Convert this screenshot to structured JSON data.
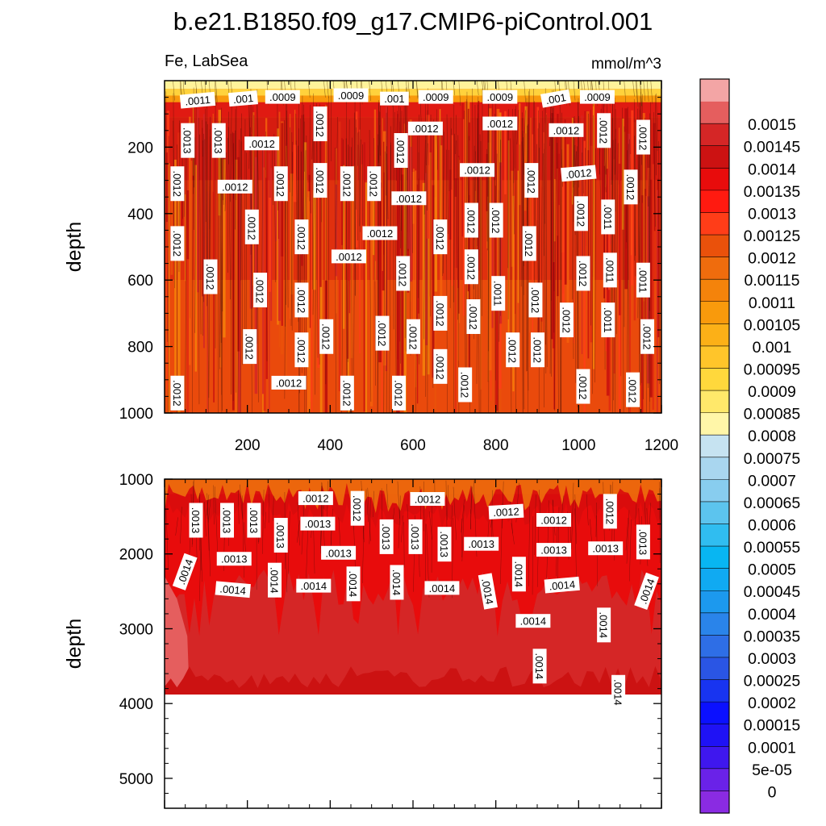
{
  "chart_data": {
    "type": "heatmap",
    "title": "b.e21.B1850.f09_g17.CMIP6-piControl.001",
    "variable_label": "Fe, LabSea",
    "units_label": "mmol/m^3",
    "colorbar": {
      "levels": [
        "0",
        "5e-05",
        "0.0001",
        "0.00015",
        "0.0002",
        "0.00025",
        "0.0003",
        "0.00035",
        "0.0004",
        "0.00045",
        "0.0005",
        "0.00055",
        "0.0006",
        "0.00065",
        "0.0007",
        "0.00075",
        "0.0008",
        "0.00085",
        "0.0009",
        "0.00095",
        "0.001",
        "0.00105",
        "0.0011",
        "0.00115",
        "0.0012",
        "0.00125",
        "0.0013",
        "0.00135",
        "0.0014",
        "0.00145",
        "0.0015"
      ],
      "colors": [
        "#8a2be2",
        "#6a22e8",
        "#3f17ee",
        "#1f12f5",
        "#0b10ff",
        "#1834f0",
        "#2a55e4",
        "#2e6ee6",
        "#2a84ea",
        "#1c99ee",
        "#10aaf2",
        "#08b6f2",
        "#30bdf0",
        "#5cc4ee",
        "#88cdef",
        "#a9d6ef",
        "#c6e3f1",
        "#fff6a8",
        "#ffe86a",
        "#ffd83c",
        "#ffc52a",
        "#fcb017",
        "#f99a0c",
        "#f4830b",
        "#ef6c0d",
        "#ea510b",
        "#ff3d18",
        "#ff1a10",
        "#e80c0c",
        "#cc1212",
        "#d52626",
        "#e55e5e",
        "#f3a5a5"
      ]
    },
    "panels": [
      {
        "name": "upper",
        "ylabel": "depth",
        "x_range": [
          0,
          1200
        ],
        "y_range": [
          1000,
          0
        ],
        "x_ticks": [
          "200",
          "400",
          "600",
          "800",
          "1000",
          "1200"
        ],
        "y_ticks": [
          "200",
          "400",
          "600",
          "800",
          "1000"
        ],
        "contour_labels": [
          {
            "t": ".0011",
            "x": 80,
            "y": 60,
            "r": -5
          },
          {
            "t": ".001",
            "x": 190,
            "y": 55,
            "r": -5
          },
          {
            "t": ".0009",
            "x": 285,
            "y": 50,
            "r": 0
          },
          {
            "t": ".0009",
            "x": 450,
            "y": 45,
            "r": 0
          },
          {
            "t": ".001",
            "x": 555,
            "y": 55,
            "r": 0
          },
          {
            "t": ".0009",
            "x": 655,
            "y": 50,
            "r": 0
          },
          {
            "t": ".0009",
            "x": 810,
            "y": 50,
            "r": 0
          },
          {
            "t": ".001",
            "x": 945,
            "y": 55,
            "r": -10
          },
          {
            "t": ".0009",
            "x": 1045,
            "y": 50,
            "r": 0
          },
          {
            "t": ".0013",
            "x": 55,
            "y": 180,
            "r": 90
          },
          {
            "t": ".0013",
            "x": 130,
            "y": 180,
            "r": 90
          },
          {
            "t": ".0012",
            "x": 375,
            "y": 130,
            "r": 90
          },
          {
            "t": ".0012",
            "x": 235,
            "y": 190,
            "r": 0
          },
          {
            "t": ".0012",
            "x": 630,
            "y": 145,
            "r": 0
          },
          {
            "t": ".0012",
            "x": 810,
            "y": 130,
            "r": 0
          },
          {
            "t": ".0012",
            "x": 970,
            "y": 150,
            "r": 0
          },
          {
            "t": ".0012",
            "x": 1060,
            "y": 150,
            "r": 90
          },
          {
            "t": ".0012",
            "x": 1155,
            "y": 170,
            "r": 90
          },
          {
            "t": ".0012",
            "x": 570,
            "y": 210,
            "r": 90
          },
          {
            "t": ".0012",
            "x": 755,
            "y": 270,
            "r": 0
          },
          {
            "t": ".0012",
            "x": 30,
            "y": 310,
            "r": 90
          },
          {
            "t": ".0012",
            "x": 170,
            "y": 320,
            "r": 0
          },
          {
            "t": ".0012",
            "x": 280,
            "y": 310,
            "r": 90
          },
          {
            "t": ".0012",
            "x": 375,
            "y": 300,
            "r": 90
          },
          {
            "t": ".0012",
            "x": 440,
            "y": 310,
            "r": 90
          },
          {
            "t": ".0012",
            "x": 505,
            "y": 310,
            "r": 90
          },
          {
            "t": ".0012",
            "x": 590,
            "y": 355,
            "r": 0
          },
          {
            "t": ".0012",
            "x": 885,
            "y": 300,
            "r": 90
          },
          {
            "t": ".0012",
            "x": 1000,
            "y": 280,
            "r": -5
          },
          {
            "t": ".0012",
            "x": 1125,
            "y": 320,
            "r": 90
          },
          {
            "t": ".0012",
            "x": 30,
            "y": 490,
            "r": 90
          },
          {
            "t": ".0012",
            "x": 210,
            "y": 440,
            "r": 90
          },
          {
            "t": ".0012",
            "x": 330,
            "y": 470,
            "r": 90
          },
          {
            "t": ".0012",
            "x": 520,
            "y": 460,
            "r": 0
          },
          {
            "t": ".0012",
            "x": 445,
            "y": 530,
            "r": 0
          },
          {
            "t": ".0012",
            "x": 665,
            "y": 470,
            "r": 90
          },
          {
            "t": ".0012",
            "x": 740,
            "y": 420,
            "r": 90
          },
          {
            "t": ".0012",
            "x": 800,
            "y": 420,
            "r": 90
          },
          {
            "t": ".0012",
            "x": 1005,
            "y": 400,
            "r": 90
          },
          {
            "t": ".0011",
            "x": 1070,
            "y": 410,
            "r": 90
          },
          {
            "t": ".0012",
            "x": 880,
            "y": 490,
            "r": 90
          },
          {
            "t": ".0012",
            "x": 110,
            "y": 590,
            "r": 90
          },
          {
            "t": ".0012",
            "x": 230,
            "y": 630,
            "r": 90
          },
          {
            "t": ".0012",
            "x": 330,
            "y": 660,
            "r": 90
          },
          {
            "t": ".0012",
            "x": 575,
            "y": 580,
            "r": 90
          },
          {
            "t": ".0012",
            "x": 740,
            "y": 560,
            "r": 90
          },
          {
            "t": ".0011",
            "x": 805,
            "y": 640,
            "r": 90
          },
          {
            "t": ".0012",
            "x": 1010,
            "y": 580,
            "r": 90
          },
          {
            "t": ".0011",
            "x": 1075,
            "y": 570,
            "r": 90
          },
          {
            "t": ".0011",
            "x": 1155,
            "y": 600,
            "r": 90
          },
          {
            "t": ".0012",
            "x": 895,
            "y": 660,
            "r": 90
          },
          {
            "t": ".0012",
            "x": 665,
            "y": 700,
            "r": 90
          },
          {
            "t": ".0012",
            "x": 745,
            "y": 710,
            "r": 90
          },
          {
            "t": ".0011",
            "x": 1070,
            "y": 720,
            "r": 90
          },
          {
            "t": ".0012",
            "x": 970,
            "y": 720,
            "r": 90
          },
          {
            "t": ".0012",
            "x": 1165,
            "y": 770,
            "r": 90
          },
          {
            "t": ".0012",
            "x": 390,
            "y": 770,
            "r": 90
          },
          {
            "t": ".0012",
            "x": 525,
            "y": 760,
            "r": 90
          },
          {
            "t": ".0012",
            "x": 600,
            "y": 770,
            "r": 90
          },
          {
            "t": ".0012",
            "x": 205,
            "y": 800,
            "r": 90
          },
          {
            "t": ".0012",
            "x": 330,
            "y": 810,
            "r": 90
          },
          {
            "t": ".0012",
            "x": 840,
            "y": 810,
            "r": 90
          },
          {
            "t": ".0012",
            "x": 900,
            "y": 810,
            "r": 90
          },
          {
            "t": ".0012",
            "x": 665,
            "y": 860,
            "r": 90
          },
          {
            "t": ".0012",
            "x": 725,
            "y": 915,
            "r": 90
          },
          {
            "t": ".0012",
            "x": 30,
            "y": 940,
            "r": 90
          },
          {
            "t": ".0012",
            "x": 300,
            "y": 910,
            "r": 0
          },
          {
            "t": ".0012",
            "x": 440,
            "y": 940,
            "r": 90
          },
          {
            "t": ".0012",
            "x": 565,
            "y": 940,
            "r": 90
          },
          {
            "t": ".0012",
            "x": 1010,
            "y": 920,
            "r": 90
          },
          {
            "t": ".0012",
            "x": 1130,
            "y": 930,
            "r": 90
          }
        ]
      },
      {
        "name": "lower",
        "ylabel": "depth",
        "x_range": [
          0,
          1200
        ],
        "y_range": [
          5400,
          1000
        ],
        "bottom_depth": 3880,
        "y_ticks": [
          "1000",
          "2000",
          "3000",
          "4000",
          "5000"
        ],
        "contour_labels": [
          {
            "t": ".0012",
            "x": 365,
            "y": 1260,
            "r": 0
          },
          {
            "t": ".0012",
            "x": 465,
            "y": 1390,
            "r": 90
          },
          {
            "t": ".0012",
            "x": 635,
            "y": 1270,
            "r": 0
          },
          {
            "t": ".0012",
            "x": 825,
            "y": 1440,
            "r": -3
          },
          {
            "t": ".0012",
            "x": 940,
            "y": 1550,
            "r": 0
          },
          {
            "t": ".0012",
            "x": 1075,
            "y": 1430,
            "r": 90
          },
          {
            "t": ".0013",
            "x": 75,
            "y": 1550,
            "r": 90
          },
          {
            "t": ".0013",
            "x": 150,
            "y": 1550,
            "r": 90
          },
          {
            "t": ".0013",
            "x": 215,
            "y": 1550,
            "r": 90
          },
          {
            "t": ".0013",
            "x": 280,
            "y": 1750,
            "r": 90
          },
          {
            "t": ".0013",
            "x": 370,
            "y": 1600,
            "r": 0
          },
          {
            "t": ".0013",
            "x": 168,
            "y": 2070,
            "r": 0
          },
          {
            "t": ".0013",
            "x": 420,
            "y": 1990,
            "r": 0
          },
          {
            "t": ".0013",
            "x": 535,
            "y": 1770,
            "r": 90
          },
          {
            "t": ".0013",
            "x": 605,
            "y": 1770,
            "r": 90
          },
          {
            "t": ".0013",
            "x": 675,
            "y": 1870,
            "r": 90
          },
          {
            "t": ".0013",
            "x": 765,
            "y": 1870,
            "r": 0
          },
          {
            "t": ".0013",
            "x": 940,
            "y": 1950,
            "r": 0
          },
          {
            "t": ".0013",
            "x": 1065,
            "y": 1930,
            "r": 0
          },
          {
            "t": ".0013",
            "x": 1155,
            "y": 1840,
            "r": 90
          },
          {
            "t": ".0014",
            "x": 50,
            "y": 2240,
            "r": -70
          },
          {
            "t": ".0014",
            "x": 165,
            "y": 2480,
            "r": 5
          },
          {
            "t": ".0014",
            "x": 265,
            "y": 2350,
            "r": 90
          },
          {
            "t": ".0014",
            "x": 360,
            "y": 2430,
            "r": 0
          },
          {
            "t": ".0014",
            "x": 455,
            "y": 2400,
            "r": 90
          },
          {
            "t": ".0014",
            "x": 560,
            "y": 2380,
            "r": 90
          },
          {
            "t": ".0014",
            "x": 670,
            "y": 2460,
            "r": 0
          },
          {
            "t": ".0014",
            "x": 780,
            "y": 2500,
            "r": 80
          },
          {
            "t": ".0014",
            "x": 855,
            "y": 2270,
            "r": 90
          },
          {
            "t": ".0014",
            "x": 960,
            "y": 2420,
            "r": -5
          },
          {
            "t": ".0014",
            "x": 890,
            "y": 2900,
            "r": 0
          },
          {
            "t": ".0014",
            "x": 1060,
            "y": 2950,
            "r": 90
          },
          {
            "t": ".0014",
            "x": 1165,
            "y": 2500,
            "r": -70
          },
          {
            "t": ".0014",
            "x": 905,
            "y": 3500,
            "r": 90
          },
          {
            "t": ".0014",
            "x": 1095,
            "y": 3850,
            "r": 90
          }
        ]
      }
    ]
  }
}
